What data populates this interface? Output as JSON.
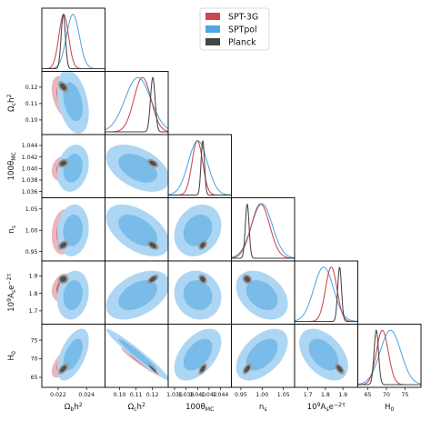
{
  "chart_data": {
    "type": "corner",
    "legend": {
      "placement": "top-right",
      "entries": [
        {
          "name": "SPT-3G",
          "color": "#c8494e"
        },
        {
          "name": "SPTpol",
          "color": "#52a6e0"
        },
        {
          "name": "Planck",
          "color": "#454545"
        }
      ]
    },
    "parameters": [
      {
        "key": "obh2",
        "base": "Ω",
        "sub": "b",
        "suffix": "h",
        "sup": "2",
        "range": [
          0.02085,
          0.0253
        ],
        "ticks": [
          0.022,
          0.024
        ],
        "tick_labels": [
          "0.022",
          "0.024"
        ]
      },
      {
        "key": "och2",
        "base": "Ω",
        "sub": "c",
        "suffix": "h",
        "sup": "2",
        "range": [
          0.0911,
          0.1296
        ],
        "ticks": [
          0.1,
          0.11,
          0.12
        ],
        "tick_labels": [
          "0.10",
          "0.11",
          "0.12"
        ]
      },
      {
        "key": "theta",
        "base": "100θ",
        "sub": "MC",
        "suffix": "",
        "sup": "",
        "range": [
          1.0349,
          1.0459
        ],
        "ticks": [
          1.036,
          1.038,
          1.04,
          1.042,
          1.044
        ],
        "tick_labels": [
          "1.036",
          "1.038",
          "1.040",
          "1.042",
          "1.044"
        ]
      },
      {
        "key": "ns",
        "base": "n",
        "sub": "s",
        "suffix": "",
        "sup": "",
        "range": [
          0.9278,
          1.0763
        ],
        "ticks": [
          0.95,
          1.0,
          1.05
        ],
        "tick_labels": [
          "0.95",
          "1.00",
          "1.05"
        ]
      },
      {
        "key": "As",
        "base": "10",
        "sub": "",
        "suffix": "A",
        "sup": "9",
        "extra": "e",
        "extra_sup": "−2τ",
        "range": [
          1.624,
          1.985
        ],
        "ticks": [
          1.7,
          1.8,
          1.9
        ],
        "tick_labels": [
          "1.7",
          "1.8",
          "1.9"
        ]
      },
      {
        "key": "H0",
        "base": "H",
        "sub": "0",
        "suffix": "",
        "sup": "",
        "range": [
          62.3,
          79.3
        ],
        "ticks": [
          65,
          70,
          75
        ],
        "tick_labels": [
          "65",
          "70",
          "75"
        ]
      }
    ],
    "series": [
      {
        "name": "SPTpol",
        "color": "#52a6e0",
        "mean": [
          0.02304,
          0.1111,
          1.04005,
          0.9996,
          1.7898,
          71.1
        ],
        "sigma": [
          0.00045,
          0.0078,
          0.00165,
          0.0245,
          0.0562,
          2.8
        ],
        "corr": [
          [
            1,
            -0.35,
            0.2,
            0.1,
            0.15,
            0.55
          ],
          [
            -0.35,
            1,
            -0.45,
            -0.5,
            0.45,
            -0.97
          ],
          [
            0.2,
            -0.45,
            1,
            0.2,
            -0.1,
            0.5
          ],
          [
            0.1,
            -0.5,
            0.2,
            1,
            -0.35,
            0.5
          ],
          [
            0.15,
            0.45,
            -0.1,
            -0.35,
            1,
            -0.45
          ],
          [
            0.55,
            -0.97,
            0.5,
            0.5,
            -0.45,
            1
          ]
        ]
      },
      {
        "name": "SPT-3G",
        "color": "#c8494e",
        "mean": [
          0.02239,
          0.1139,
          1.03997,
          0.9963,
          1.8333,
          68.9
        ],
        "sigma": [
          0.00034,
          0.0052,
          0.00092,
          0.0215,
          0.0325,
          1.6
        ],
        "corr": [
          [
            1,
            -0.4,
            0.15,
            0.15,
            0.25,
            0.6
          ],
          [
            -0.4,
            1,
            -0.4,
            -0.55,
            0.6,
            -0.97
          ],
          [
            0.15,
            -0.4,
            1,
            0.25,
            -0.2,
            0.45
          ],
          [
            0.15,
            -0.55,
            0.25,
            1,
            -0.55,
            0.55
          ],
          [
            0.25,
            0.6,
            -0.2,
            -0.55,
            1,
            -0.6
          ],
          [
            0.6,
            -0.97,
            0.45,
            0.55,
            -0.6,
            1
          ]
        ]
      },
      {
        "name": "Planck",
        "color": "#454545",
        "mean": [
          0.02236,
          0.1202,
          1.04091,
          0.9649,
          1.881,
          67.27
        ],
        "sigma": [
          0.00015,
          0.0014,
          0.0003,
          0.0044,
          0.011,
          0.6
        ],
        "corr": [
          [
            1,
            -0.5,
            0.3,
            0.4,
            0.1,
            0.6
          ],
          [
            -0.5,
            1,
            -0.5,
            -0.5,
            0.6,
            -0.95
          ],
          [
            0.3,
            -0.5,
            1,
            0.4,
            -0.3,
            0.6
          ],
          [
            0.4,
            -0.5,
            0.4,
            1,
            -0.2,
            0.6
          ],
          [
            0.1,
            0.6,
            -0.3,
            -0.2,
            1,
            -0.6
          ],
          [
            0.6,
            -0.95,
            0.6,
            0.6,
            -0.6,
            1
          ]
        ]
      }
    ],
    "contour_levels": [
      "68%",
      "95%"
    ],
    "grid": false
  }
}
